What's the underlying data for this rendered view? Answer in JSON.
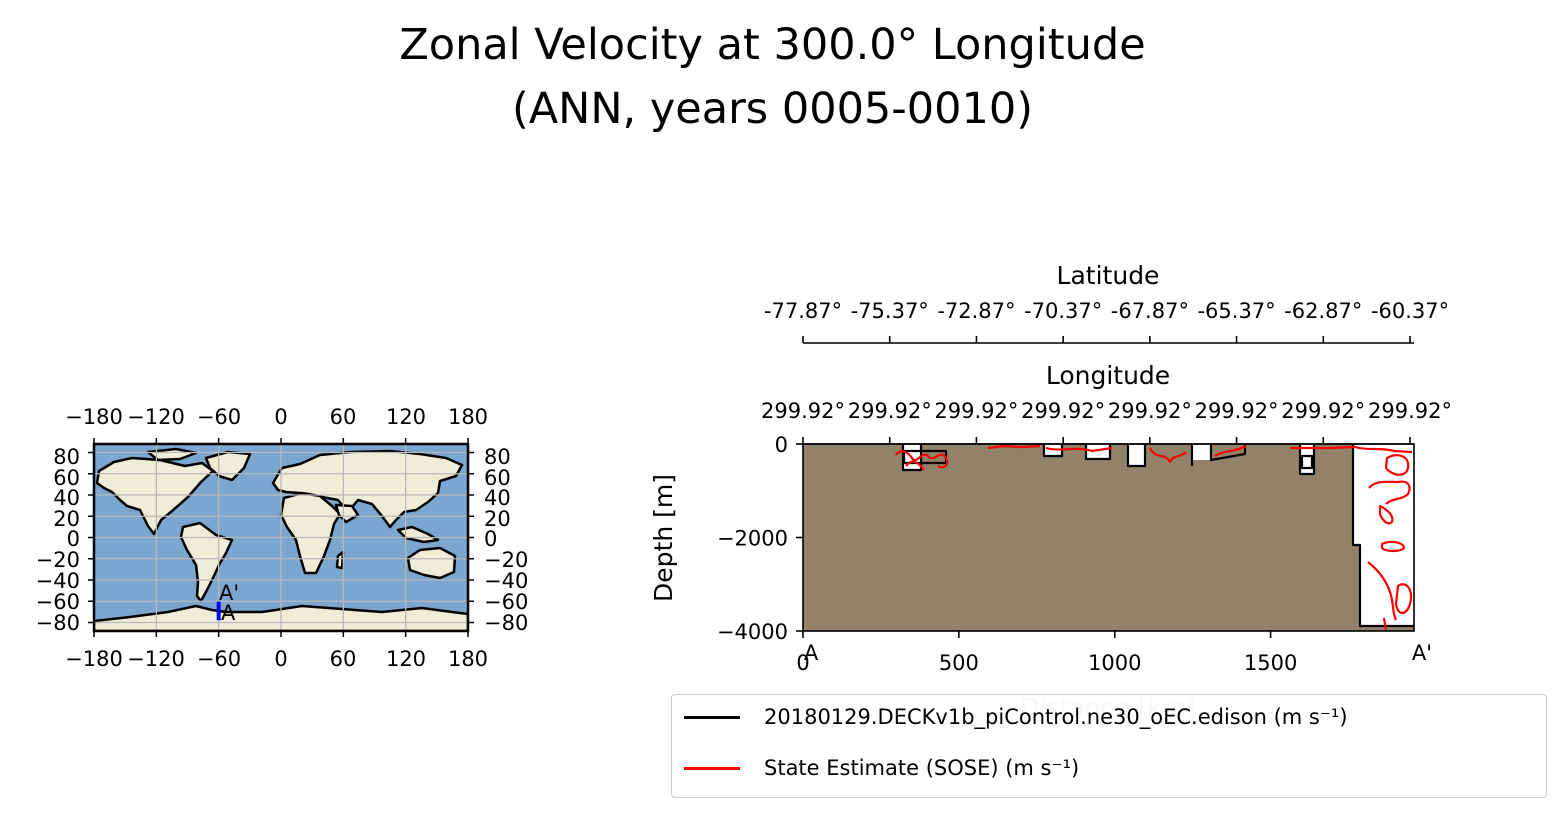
{
  "title": {
    "line1": "Zonal Velocity at 300.0° Longitude",
    "line2": "(ANN, years 0005-0010)"
  },
  "colors": {
    "ocean": "#7ba6cf",
    "land": "#efedd8",
    "section_fill": "#918269",
    "model_contour": "#000000",
    "obs_contour": "#ff0000",
    "transect": "#0000ff",
    "grid": "#b8b8b8"
  },
  "map": {
    "x_ticks": [
      "−180",
      "−120",
      "−60",
      "0",
      "60",
      "120",
      "180"
    ],
    "y_ticks_left": [
      "80",
      "60",
      "40",
      "20",
      "0",
      "−20",
      "−40",
      "−60",
      "−80"
    ],
    "y_ticks_right": [
      "80",
      "60",
      "40",
      "20",
      "0",
      "−20",
      "−40",
      "−60",
      "−80"
    ],
    "transect_start_label": "A",
    "transect_end_label": "A'"
  },
  "chart_data": {
    "type": "contour-section",
    "title": "Zonal Velocity at 300.0° Longitude (ANN, years 0005-0010)",
    "xlabel": "Distance [km]",
    "ylabel": "Depth [m]",
    "xlim": [
      0,
      1960
    ],
    "ylim": [
      -4000,
      0
    ],
    "x_ticks": [
      0,
      500,
      1000,
      1500
    ],
    "x_tick_labels": [
      "0",
      "500",
      "1000",
      "1500"
    ],
    "y_ticks": [
      0,
      -2000,
      -4000
    ],
    "y_tick_labels": [
      "0",
      "−2000",
      "−4000"
    ],
    "endpoint_labels": [
      "A",
      "A'"
    ],
    "secondary_axes": [
      {
        "label": "Longitude",
        "tick_labels": [
          "299.92°",
          "299.92°",
          "299.92°",
          "299.92°",
          "299.92°",
          "299.92°",
          "299.92°",
          "299.92°"
        ]
      },
      {
        "label": "Latitude",
        "tick_labels": [
          "-77.87°",
          "-75.37°",
          "-72.87°",
          "-70.37°",
          "-67.87°",
          "-65.37°",
          "-62.87°",
          "-60.37°"
        ]
      }
    ],
    "series": [
      {
        "name": "20180129.DECKv1b_piControl.ne30_oEC.edison (m s⁻¹)",
        "color": "#000000"
      },
      {
        "name": "State Estimate (SOSE) (m s⁻¹)",
        "color": "#ff0000"
      }
    ]
  }
}
